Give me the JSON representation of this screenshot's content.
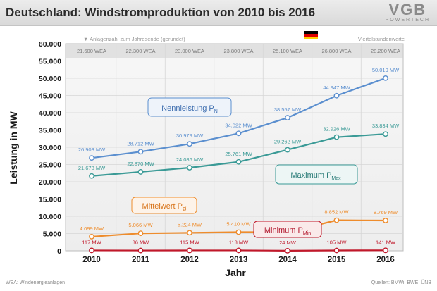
{
  "header": {
    "title": "Deutschland: Windstromproduktion von 2010 bis 2016",
    "logo_main": "VGB",
    "logo_sub": "POWERTECH"
  },
  "footer": {
    "left": "WEA: Windenergieanlagen",
    "right": "Quellen: BMWi, BWE, ÜNB"
  },
  "colors": {
    "nenn": "#5b8fcf",
    "max": "#3a9a96",
    "mittel": "#ee8c2c",
    "min": "#c0182a",
    "wea_band": "#cfcfcf",
    "flag_black": "#000000",
    "flag_red": "#dd0000",
    "flag_gold": "#ffce00"
  },
  "chart_data": {
    "type": "line",
    "title": "Deutschland: Windstromproduktion von 2010 bis 2016",
    "xlabel": "Jahr",
    "ylabel": "Leistung in MW",
    "ylim": [
      0,
      60000
    ],
    "yticks": [
      "0",
      "5.000",
      "10.000",
      "15.000",
      "20.000",
      "25.000",
      "30.000",
      "35.000",
      "40.000",
      "45.000",
      "50.000",
      "55.000",
      "60.000"
    ],
    "categories": [
      "2010",
      "2011",
      "2012",
      "2013",
      "2014",
      "2015",
      "2016"
    ],
    "wea_header": "▼ Anlagenzahl zum Jahresende (gerundet)",
    "note_right": "Viertelstundenwerte",
    "wea_counts": [
      "21.600 WEA",
      "22.300 WEA",
      "23.000 WEA",
      "23.800 WEA",
      "25.100 WEA",
      "26.800 WEA",
      "28.200 WEA"
    ],
    "series": [
      {
        "key": "nenn",
        "name_main": "Nennleistung P",
        "name_sub": "N",
        "values": [
          26903,
          28712,
          30979,
          34022,
          38557,
          44947,
          50019
        ],
        "labels": [
          "26.903 MW",
          "28.712 MW",
          "30.979 MW",
          "34.022 MW",
          "38.557 MW",
          "44.947 MW",
          "50.019 MW"
        ]
      },
      {
        "key": "max",
        "name_main": "Maximum P",
        "name_sub": "Max",
        "values": [
          21678,
          22870,
          24086,
          25761,
          29262,
          32926,
          33834
        ],
        "labels": [
          "21.678 MW",
          "22.870 MW",
          "24.086 MW",
          "25.761 MW",
          "29.262 MW",
          "32.926 MW",
          "33.834 MW"
        ]
      },
      {
        "key": "mittel",
        "name_main": "Mittelwert P",
        "name_sub": "Ø",
        "values": [
          4099,
          5066,
          5224,
          5410,
          5410,
          8852,
          8769
        ],
        "labels": [
          "4.099 MW",
          "5.066 MW",
          "5.224 MW",
          "5.410 MW",
          "",
          "8.852 MW",
          "8.769 MW"
        ]
      },
      {
        "key": "min",
        "name_main": "Minimum P",
        "name_sub": "Min",
        "values": [
          117,
          86,
          115,
          118,
          24,
          105,
          141
        ],
        "labels": [
          "117 MW",
          "86 MW",
          "115 MW",
          "118 MW",
          "24 MW",
          "105 MW",
          "141 MW"
        ]
      }
    ]
  }
}
